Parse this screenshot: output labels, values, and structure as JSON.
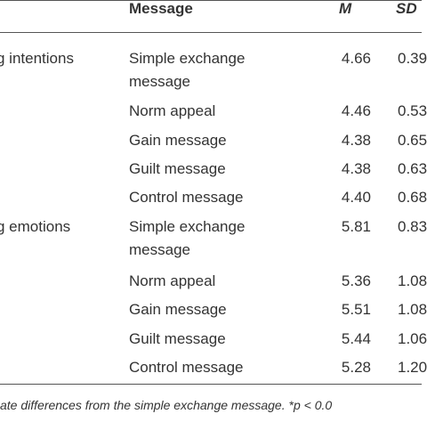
{
  "table": {
    "header": [
      "Message",
      "M",
      "SD"
    ],
    "groups": [
      {
        "label": "g intentions",
        "rows": [
          {
            "message": "Simple exchange message",
            "M": "4.66",
            "SD": "0.39"
          },
          {
            "message": "Norm appeal",
            "M": "4.46",
            "SD": "0.53"
          },
          {
            "message": "Gain message",
            "M": "4.38",
            "SD": "0.65"
          },
          {
            "message": "Guilt message",
            "M": "4.38",
            "SD": "0.63"
          },
          {
            "message": "Control message",
            "M": "4.40",
            "SD": "0.68"
          }
        ]
      },
      {
        "label": "g emotions",
        "rows": [
          {
            "message": "Simple exchange message",
            "M": "5.81",
            "SD": "0.83"
          },
          {
            "message": "Norm appeal",
            "M": "5.36",
            "SD": "1.08"
          },
          {
            "message": "Gain message",
            "M": "5.51",
            "SD": "1.08"
          },
          {
            "message": "Guilt message",
            "M": "5.44",
            "SD": "1.06"
          },
          {
            "message": "Control message",
            "M": "5.28",
            "SD": "1.20"
          }
        ]
      }
    ]
  },
  "footnote": "ate differences from the simple exchange message. *p < 0.0"
}
